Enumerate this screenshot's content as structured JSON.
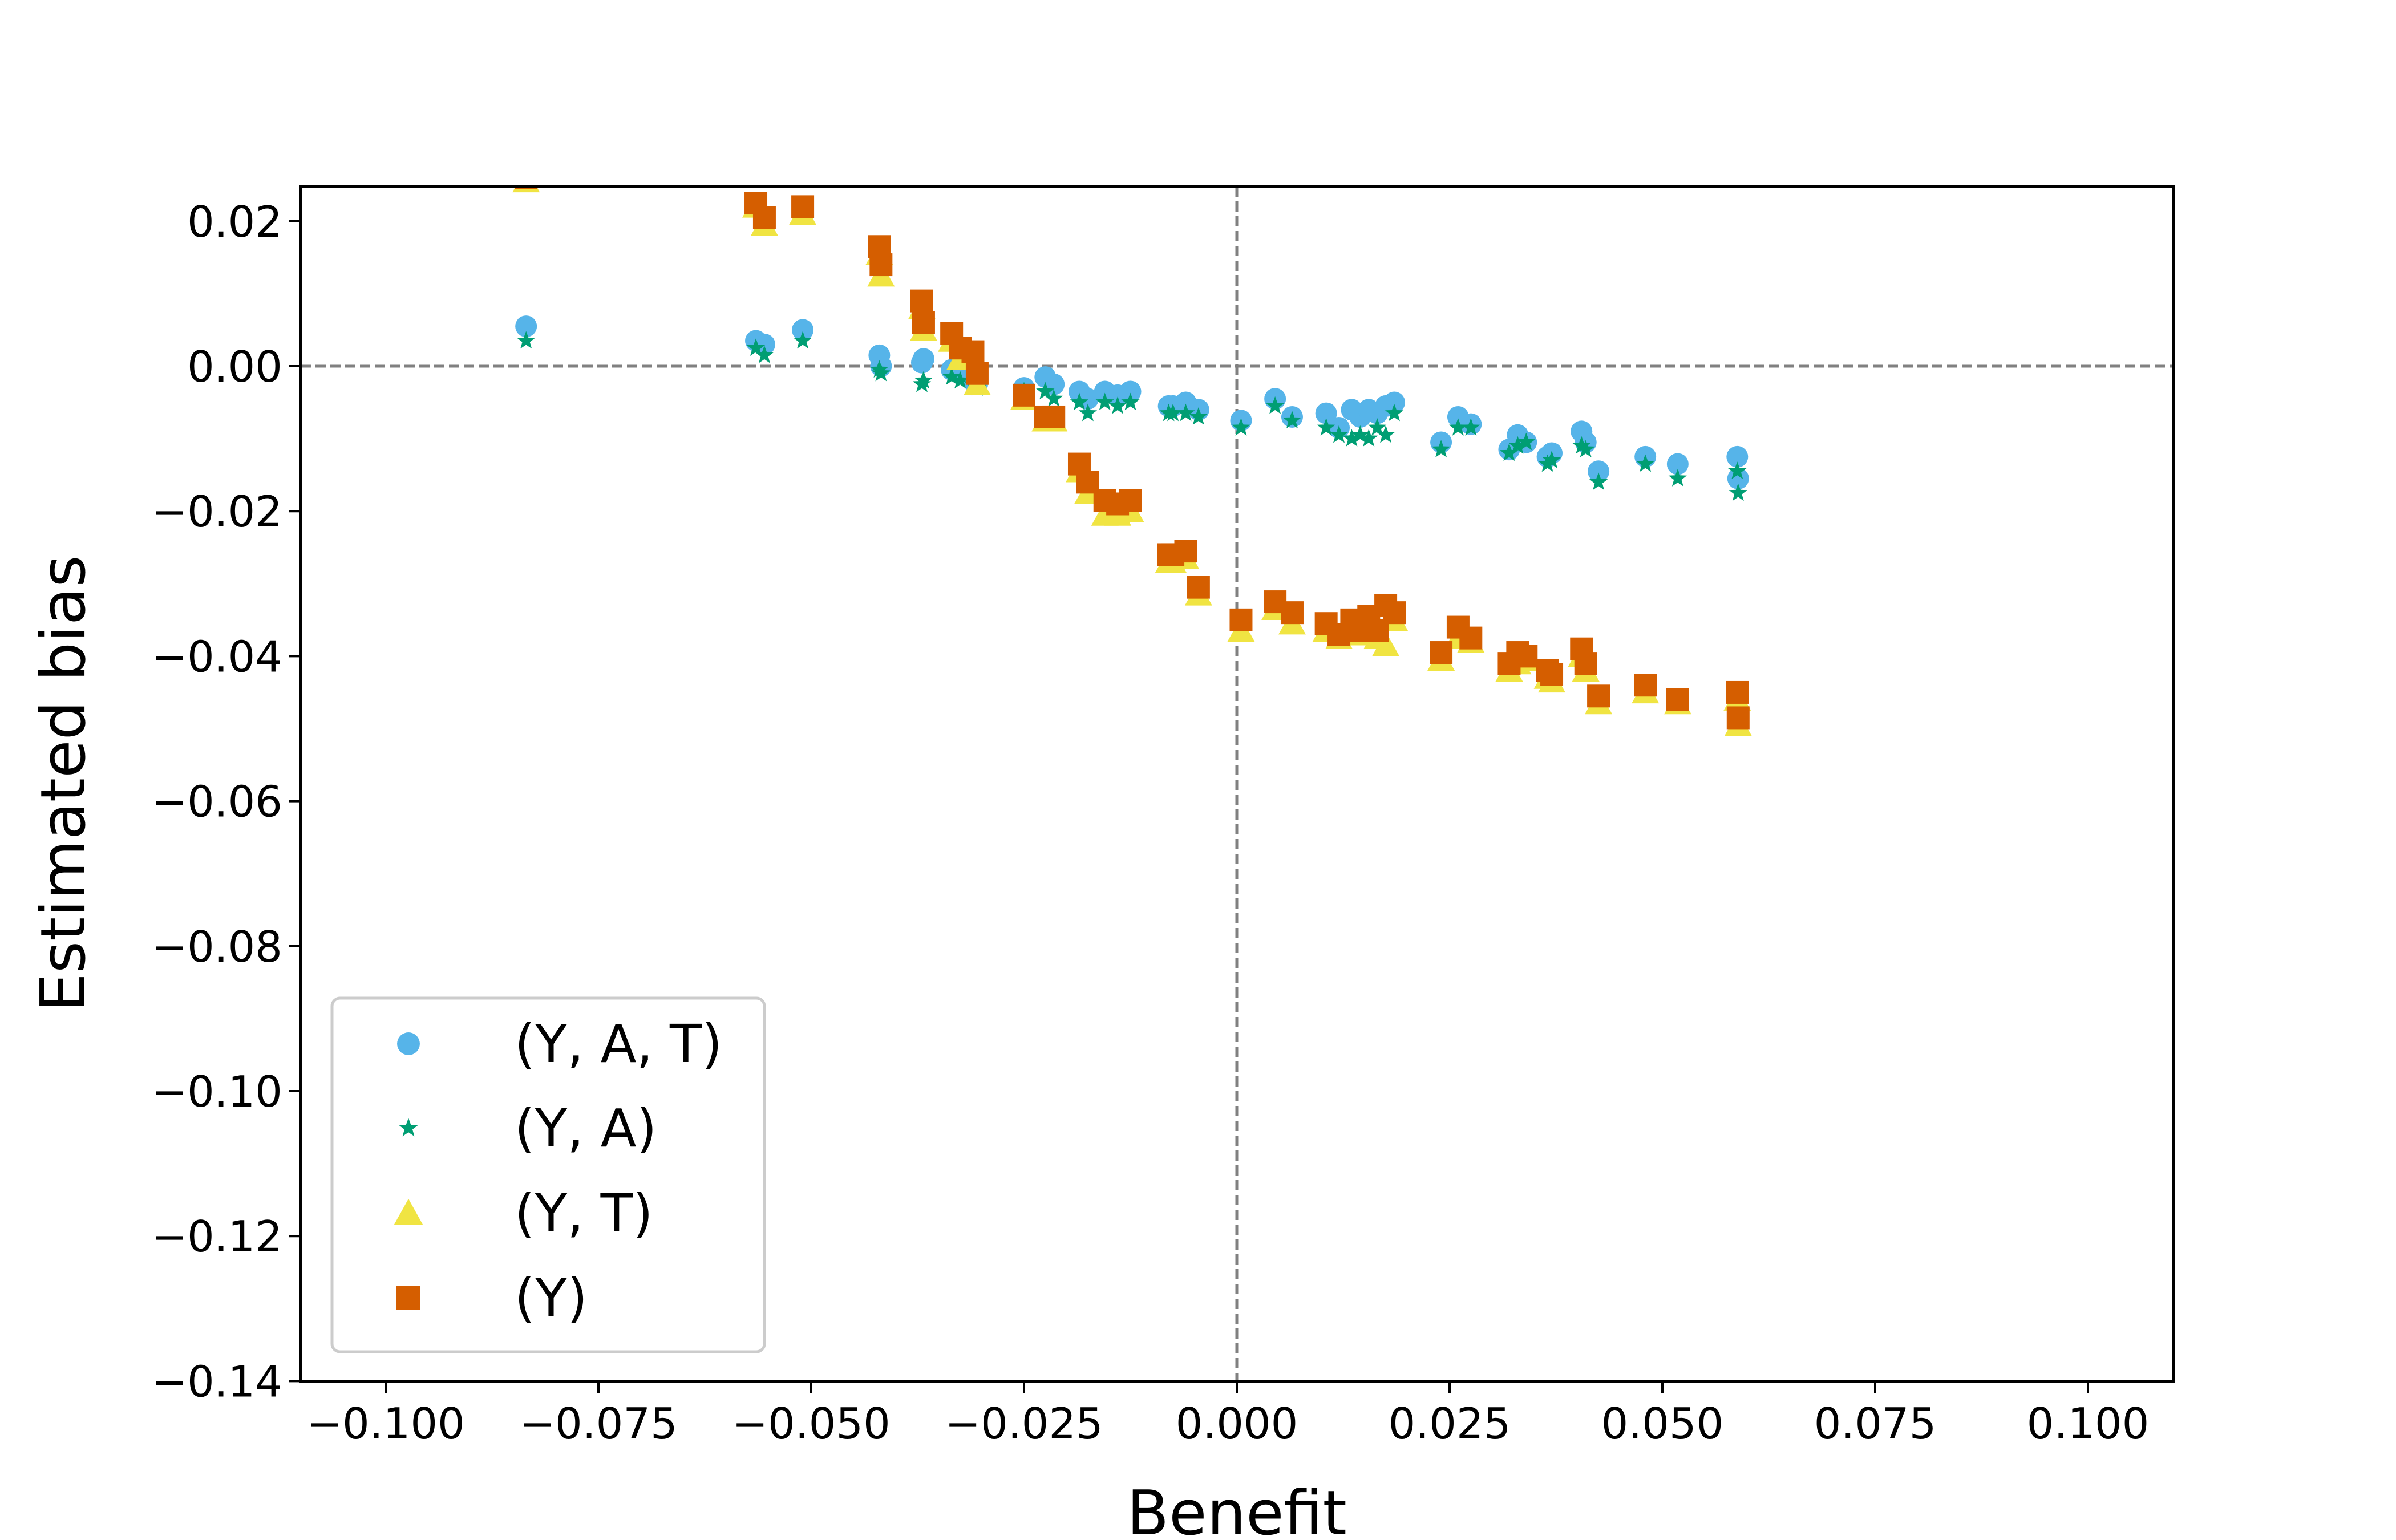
{
  "chart_data": {
    "type": "scatter",
    "title": "",
    "xlabel": "Benefit",
    "ylabel": "Estimated bias",
    "xlim": [
      -0.11,
      0.11
    ],
    "ylim": [
      -0.14,
      0.025
    ],
    "x_ticks": [
      -0.1,
      -0.075,
      -0.05,
      -0.025,
      0.0,
      0.025,
      0.05,
      0.075,
      0.1
    ],
    "x_tick_labels": [
      "−0.100",
      "−0.075",
      "−0.050",
      "−0.025",
      "0.000",
      "0.025",
      "0.050",
      "0.075",
      "0.100"
    ],
    "y_ticks": [
      0.02,
      0.0,
      -0.02,
      -0.04,
      -0.06,
      -0.08,
      -0.1,
      -0.12,
      -0.14
    ],
    "y_tick_labels": [
      "0.02",
      "0.00",
      "−0.02",
      "−0.04",
      "−0.06",
      "−0.08",
      "−0.10",
      "−0.12",
      "−0.14"
    ],
    "reference_lines": {
      "horizontal_y": 0.0,
      "vertical_x": 0.0,
      "style": "dashed",
      "color": "#808080"
    },
    "legend_position": "lower-left",
    "x": [
      -0.0835,
      -0.0565,
      -0.0555,
      -0.051,
      -0.042,
      -0.0418,
      -0.037,
      -0.0368,
      -0.0335,
      -0.0325,
      -0.031,
      -0.0305,
      -0.025,
      -0.0225,
      -0.0215,
      -0.0185,
      -0.0175,
      -0.0155,
      -0.014,
      -0.0125,
      -0.008,
      -0.0075,
      -0.006,
      -0.0045,
      0.0005,
      0.0045,
      0.0065,
      0.0105,
      0.012,
      0.0135,
      0.0145,
      0.0155,
      0.0165,
      0.0175,
      0.0185,
      0.024,
      0.026,
      0.0275,
      0.032,
      0.033,
      0.034,
      0.0365,
      0.037,
      0.0405,
      0.041,
      0.0425,
      0.048,
      0.0518,
      0.0588,
      0.0589
    ],
    "series": [
      {
        "name": "(Y, A, T)",
        "marker": "circle",
        "color": "#56B4E9",
        "values": [
          0.0055,
          0.0035,
          0.003,
          0.005,
          0.0015,
          0.0,
          0.0005,
          0.001,
          -0.0005,
          -0.001,
          -0.002,
          -0.0025,
          -0.003,
          -0.0015,
          -0.0025,
          -0.0035,
          -0.0045,
          -0.0035,
          -0.004,
          -0.0035,
          -0.0055,
          -0.0055,
          -0.005,
          -0.006,
          -0.0075,
          -0.0045,
          -0.007,
          -0.0065,
          -0.0085,
          -0.006,
          -0.007,
          -0.006,
          -0.0065,
          -0.0055,
          -0.005,
          -0.0105,
          -0.007,
          -0.008,
          -0.0115,
          -0.0095,
          -0.0105,
          -0.0125,
          -0.012,
          -0.009,
          -0.0105,
          -0.0145,
          -0.0125,
          -0.0135,
          -0.0125,
          -0.0155
        ]
      },
      {
        "name": "(Y, A)",
        "marker": "star",
        "color": "#009E73",
        "values": [
          0.0035,
          0.0025,
          0.0015,
          0.0035,
          -0.0005,
          -0.001,
          -0.0025,
          -0.002,
          -0.0015,
          -0.002,
          -0.0025,
          -0.003,
          -0.0035,
          -0.0035,
          -0.0045,
          -0.005,
          -0.0065,
          -0.005,
          -0.0055,
          -0.005,
          -0.0065,
          -0.0065,
          -0.0065,
          -0.007,
          -0.0085,
          -0.0055,
          -0.0075,
          -0.0085,
          -0.0095,
          -0.01,
          -0.0095,
          -0.01,
          -0.0085,
          -0.0095,
          -0.0065,
          -0.0115,
          -0.0085,
          -0.0085,
          -0.012,
          -0.011,
          -0.0105,
          -0.0135,
          -0.013,
          -0.011,
          -0.0115,
          -0.016,
          -0.0135,
          -0.0155,
          -0.0145,
          -0.0175
        ]
      },
      {
        "name": "(Y, T)",
        "marker": "triangle",
        "color": "#F0E442",
        "values": [
          0.0255,
          0.022,
          0.0195,
          0.021,
          0.0155,
          0.0125,
          0.008,
          0.005,
          0.0035,
          0.001,
          0.001,
          -0.0025,
          -0.0045,
          -0.0075,
          -0.0075,
          -0.0145,
          -0.0175,
          -0.0205,
          -0.0205,
          -0.02,
          -0.027,
          -0.027,
          -0.0265,
          -0.0315,
          -0.0365,
          -0.0335,
          -0.0355,
          -0.0365,
          -0.0375,
          -0.0355,
          -0.037,
          -0.036,
          -0.0375,
          -0.0385,
          -0.035,
          -0.0405,
          -0.0375,
          -0.038,
          -0.042,
          -0.041,
          -0.0405,
          -0.043,
          -0.0435,
          -0.04,
          -0.042,
          -0.0465,
          -0.045,
          -0.0465,
          -0.046,
          -0.0495
        ]
      },
      {
        "name": "(Y)",
        "marker": "square",
        "color": "#D55E00",
        "values": [
          0.026,
          0.0225,
          0.0205,
          0.022,
          0.0165,
          0.014,
          0.009,
          0.006,
          0.0045,
          0.0025,
          0.002,
          -0.001,
          -0.004,
          -0.007,
          -0.007,
          -0.0135,
          -0.016,
          -0.0185,
          -0.019,
          -0.0185,
          -0.026,
          -0.026,
          -0.0255,
          -0.0305,
          -0.035,
          -0.0325,
          -0.034,
          -0.0355,
          -0.037,
          -0.035,
          -0.0365,
          -0.0345,
          -0.0365,
          -0.033,
          -0.034,
          -0.0395,
          -0.036,
          -0.0375,
          -0.041,
          -0.0395,
          -0.04,
          -0.042,
          -0.0425,
          -0.039,
          -0.041,
          -0.0455,
          -0.044,
          -0.046,
          -0.045,
          -0.0485
        ]
      }
    ]
  }
}
